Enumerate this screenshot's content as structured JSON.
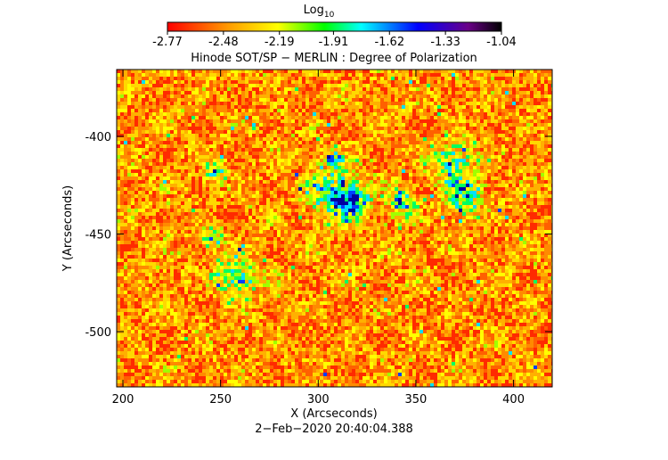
{
  "chart_data": {
    "type": "image",
    "title": "Hinode SOT/SP − MERLIN : Degree of Polarization",
    "colorbar_label": "Log",
    "colorbar_label_sub": "10",
    "colorbar_lim": [
      -2.77,
      -1.04
    ],
    "colorbar_ticks": [
      -2.77,
      -2.48,
      -2.19,
      -1.91,
      -1.62,
      -1.33,
      -1.04
    ],
    "x_label": "X (Arcseconds)",
    "y_label": "Y (Arcseconds)",
    "xlim": [
      196.8,
      419.8
    ],
    "ylim": [
      -528.3,
      -365.8
    ],
    "xticks": [
      200,
      250,
      300,
      350,
      400
    ],
    "yticks": [
      -500,
      -450,
      -400
    ],
    "timestamp": "2−Feb−2020 20:40:04.388"
  }
}
